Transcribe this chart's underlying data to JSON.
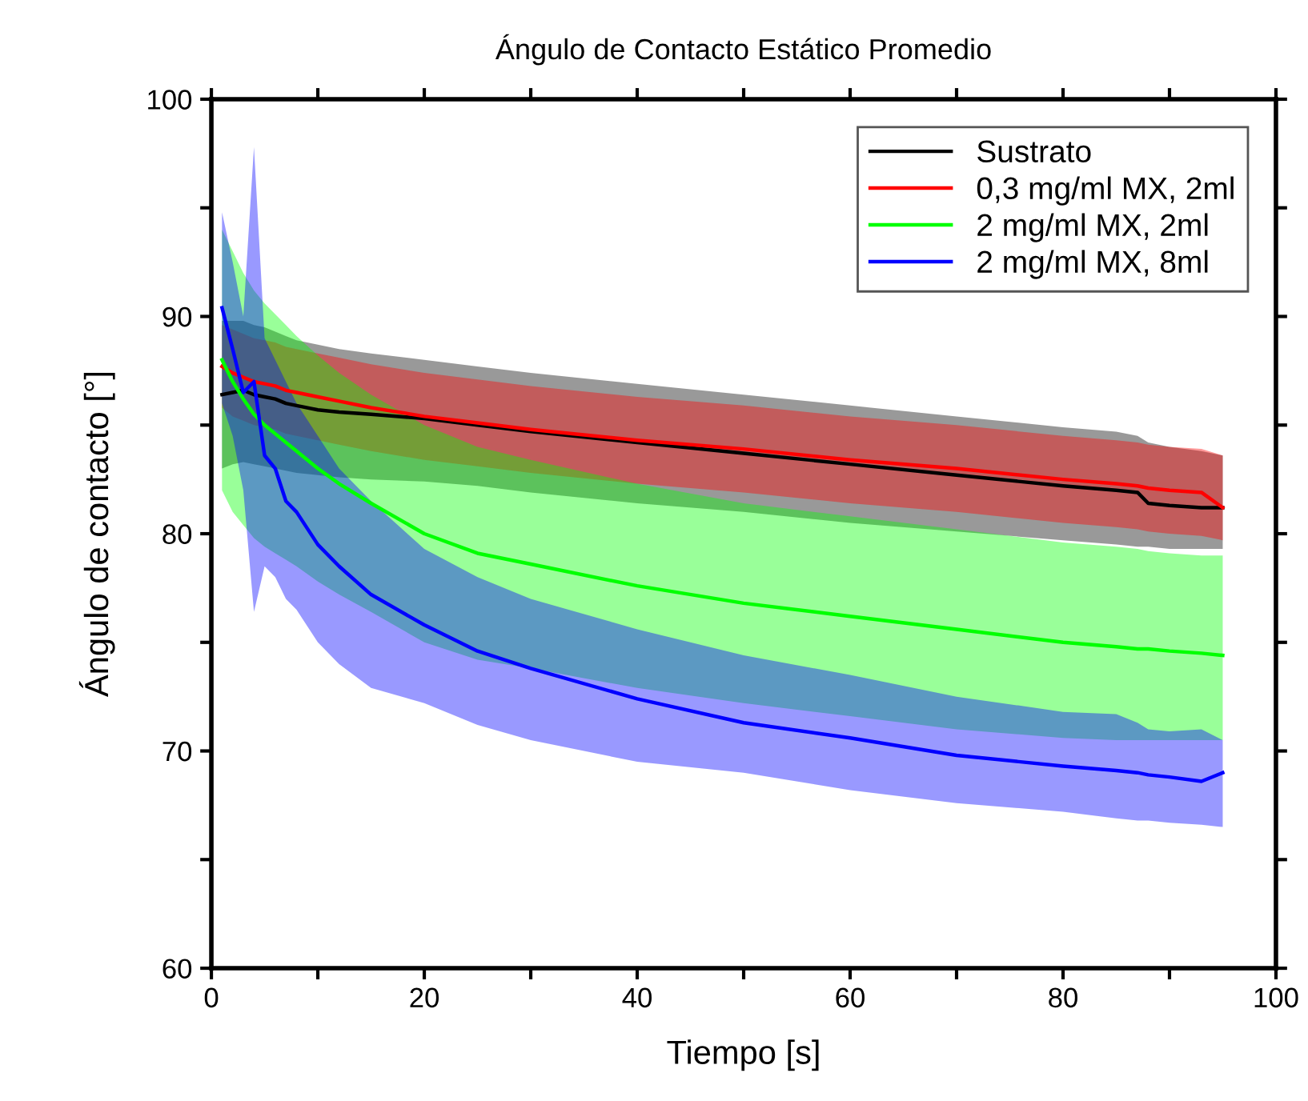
{
  "chart_data": {
    "type": "line",
    "title": "Ángulo de Contacto Estático Promedio",
    "xlabel": "Tiempo [s]",
    "ylabel": "Ángulo de contacto [°]",
    "x": [
      1,
      2,
      3,
      4,
      5,
      6,
      7,
      8,
      10,
      12,
      15,
      20,
      25,
      30,
      40,
      50,
      60,
      70,
      80,
      85,
      87,
      88,
      90,
      93,
      95
    ],
    "series": [
      {
        "name": "Sustrato",
        "color": "#000000",
        "values": [
          86.4,
          86.5,
          86.6,
          86.4,
          86.3,
          86.2,
          86.0,
          85.9,
          85.7,
          85.6,
          85.5,
          85.3,
          85.0,
          84.7,
          84.2,
          83.7,
          83.2,
          82.7,
          82.2,
          82.0,
          81.9,
          81.4,
          81.3,
          81.2,
          81.2
        ],
        "upper": [
          89.8,
          89.8,
          89.8,
          89.6,
          89.5,
          89.3,
          89.1,
          88.9,
          88.7,
          88.5,
          88.3,
          88.0,
          87.7,
          87.4,
          86.9,
          86.4,
          85.9,
          85.4,
          84.9,
          84.7,
          84.5,
          84.2,
          84.0,
          83.8,
          83.6
        ],
        "lower": [
          83.0,
          83.2,
          83.3,
          83.2,
          83.1,
          83.0,
          82.9,
          82.8,
          82.7,
          82.6,
          82.5,
          82.4,
          82.2,
          81.9,
          81.4,
          81.0,
          80.5,
          80.1,
          79.7,
          79.5,
          79.4,
          79.4,
          79.3,
          79.3,
          79.3
        ]
      },
      {
        "name": "0,3 mg/ml MX, 2ml",
        "color": "#ff0000",
        "values": [
          87.7,
          87.4,
          87.2,
          87.0,
          86.9,
          86.8,
          86.6,
          86.5,
          86.3,
          86.1,
          85.8,
          85.4,
          85.1,
          84.8,
          84.3,
          83.9,
          83.4,
          83.0,
          82.5,
          82.3,
          82.2,
          82.1,
          82.0,
          81.9,
          81.2
        ],
        "upper": [
          89.6,
          89.4,
          89.2,
          89.0,
          88.9,
          88.8,
          88.6,
          88.5,
          88.3,
          88.1,
          87.8,
          87.4,
          87.1,
          86.8,
          86.3,
          85.9,
          85.4,
          85.0,
          84.5,
          84.3,
          84.2,
          84.1,
          84.0,
          83.9,
          83.6
        ],
        "lower": [
          85.8,
          85.4,
          85.2,
          85.0,
          84.9,
          84.8,
          84.6,
          84.5,
          84.3,
          84.1,
          83.8,
          83.4,
          83.1,
          82.8,
          82.3,
          81.9,
          81.4,
          81.0,
          80.5,
          80.3,
          80.2,
          80.1,
          80.0,
          79.9,
          79.7
        ]
      },
      {
        "name": "2 mg/ml MX, 2ml",
        "color": "#00ff00",
        "values": [
          88.0,
          87.0,
          86.2,
          85.5,
          85.0,
          84.6,
          84.2,
          83.8,
          83.0,
          82.3,
          81.4,
          80.0,
          79.1,
          78.6,
          77.6,
          76.8,
          76.2,
          75.6,
          75.0,
          74.8,
          74.7,
          74.7,
          74.6,
          74.5,
          74.4
        ],
        "upper": [
          94.0,
          93.0,
          92.0,
          91.2,
          90.6,
          90.1,
          89.6,
          89.1,
          88.2,
          87.4,
          86.4,
          85.0,
          84.0,
          83.4,
          82.3,
          81.4,
          80.8,
          80.2,
          79.6,
          79.4,
          79.3,
          79.2,
          79.1,
          79.0,
          79.0
        ],
        "lower": [
          82.0,
          81.0,
          80.4,
          79.8,
          79.4,
          79.1,
          78.8,
          78.5,
          77.8,
          77.2,
          76.4,
          75.0,
          74.2,
          73.8,
          72.9,
          72.2,
          71.6,
          71.0,
          70.6,
          70.5,
          70.5,
          70.5,
          70.5,
          70.5,
          70.5
        ]
      },
      {
        "name": "2 mg/ml MX, 8ml",
        "color": "#0000ff",
        "values": [
          90.4,
          88.5,
          86.5,
          87.0,
          83.6,
          83.0,
          81.5,
          81.0,
          79.5,
          78.5,
          77.2,
          75.8,
          74.6,
          73.8,
          72.4,
          71.3,
          70.6,
          69.8,
          69.3,
          69.1,
          69.0,
          68.9,
          68.8,
          68.6,
          69.0
        ],
        "upper": [
          94.8,
          92.5,
          90.0,
          97.8,
          89.0,
          88.0,
          87.0,
          86.0,
          84.5,
          83.0,
          81.5,
          79.3,
          78.0,
          77.0,
          75.6,
          74.4,
          73.5,
          72.5,
          71.8,
          71.7,
          71.3,
          71.0,
          70.9,
          71.0,
          70.5
        ],
        "lower": [
          86.0,
          84.5,
          82.0,
          76.4,
          78.5,
          78.0,
          77.0,
          76.5,
          75.0,
          74.0,
          72.9,
          72.2,
          71.2,
          70.5,
          69.5,
          69.0,
          68.2,
          67.6,
          67.2,
          66.9,
          66.8,
          66.8,
          66.7,
          66.6,
          66.5
        ]
      }
    ],
    "xlim": [
      0,
      100
    ],
    "xticks": [
      0,
      {
        "value": 10,
        "label": null
      },
      20,
      {
        "value": 30,
        "label": null
      },
      40,
      {
        "value": 50,
        "label": null
      },
      60,
      {
        "value": 70,
        "label": null
      },
      80,
      {
        "value": 90,
        "label": null
      },
      100
    ],
    "ylim": [
      60,
      100
    ],
    "yticks": [
      60,
      {
        "value": 65,
        "label": null
      },
      70,
      {
        "value": 75,
        "label": null
      },
      80,
      {
        "value": 85,
        "label": null
      },
      90,
      {
        "value": 95,
        "label": null
      },
      100
    ],
    "legend": "top right",
    "grid": false,
    "line_style": "solid",
    "marker": "none"
  }
}
